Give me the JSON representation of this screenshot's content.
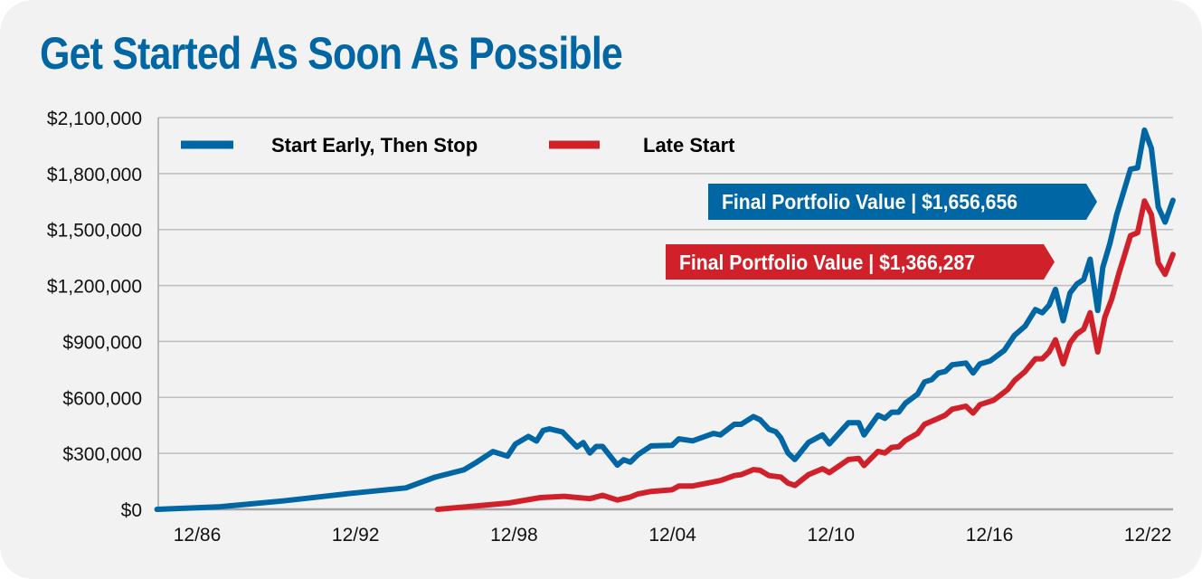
{
  "title": "Get Started As Soon As Possible",
  "colors": {
    "blue": "#0066a4",
    "red": "#d0212b",
    "grid": "#bdbdbd",
    "background": "#f2f2f2"
  },
  "callouts": [
    {
      "label": "Final Portfolio Value | $1,656,656",
      "series": "Start Early, Then Stop"
    },
    {
      "label": "Final Portfolio Value | $1,366,287",
      "series": "Late Start"
    }
  ],
  "chart_data": {
    "type": "line",
    "title": "Get Started As Soon As Possible",
    "xlabel": "",
    "ylabel": "",
    "xlim": [
      1985.5,
      2023.95
    ],
    "ylim": [
      0,
      2100000
    ],
    "grid": true,
    "legend_position": "top-left",
    "x_ticks": [
      {
        "label": "12/86",
        "x": 1987.0
      },
      {
        "label": "12/92",
        "x": 1993.0
      },
      {
        "label": "12/98",
        "x": 1999.0
      },
      {
        "label": "12/04",
        "x": 2005.0
      },
      {
        "label": "12/10",
        "x": 2011.0
      },
      {
        "label": "12/16",
        "x": 2017.0
      },
      {
        "label": "12/22",
        "x": 2023.0
      }
    ],
    "y_ticks": [
      {
        "label": "$0",
        "v": 0
      },
      {
        "label": "$300,000",
        "v": 300000
      },
      {
        "label": "$600,000",
        "v": 600000
      },
      {
        "label": "$900,000",
        "v": 900000
      },
      {
        "label": "$1,200,000",
        "v": 1200000
      },
      {
        "label": "$1,500,000",
        "v": 1500000
      },
      {
        "label": "$1,800,000",
        "v": 1800000
      },
      {
        "label": "$2,100,000",
        "v": 2100000
      }
    ],
    "series": [
      {
        "name": "Start Early, Then Stop",
        "color": "#0066a4",
        "points": [
          [
            1985.48,
            0
          ],
          [
            1987.8,
            13000
          ],
          [
            1990.25,
            45000
          ],
          [
            1992.7,
            84000
          ],
          [
            1994.9,
            115000
          ],
          [
            1996.0,
            172000
          ],
          [
            1997.1,
            212000
          ],
          [
            1997.59,
            253000
          ],
          [
            1998.2,
            310000
          ],
          [
            1998.75,
            285000
          ],
          [
            1999.05,
            350000
          ],
          [
            1999.54,
            391000
          ],
          [
            1999.85,
            366000
          ],
          [
            2000.1,
            423000
          ],
          [
            2000.34,
            431000
          ],
          [
            2000.83,
            415000
          ],
          [
            2001.38,
            334000
          ],
          [
            2001.62,
            358000
          ],
          [
            2001.87,
            302000
          ],
          [
            2002.11,
            337000
          ],
          [
            2002.35,
            337000
          ],
          [
            2002.91,
            237000
          ],
          [
            2003.15,
            266000
          ],
          [
            2003.4,
            253000
          ],
          [
            2003.7,
            294000
          ],
          [
            2004.19,
            340000
          ],
          [
            2004.98,
            343000
          ],
          [
            2005.24,
            378000
          ],
          [
            2005.76,
            367000
          ],
          [
            2006.55,
            407000
          ],
          [
            2006.81,
            399000
          ],
          [
            2007.34,
            456000
          ],
          [
            2007.6,
            456000
          ],
          [
            2008.06,
            497000
          ],
          [
            2008.32,
            480000
          ],
          [
            2008.65,
            429000
          ],
          [
            2008.91,
            416000
          ],
          [
            2009.1,
            383000
          ],
          [
            2009.37,
            302000
          ],
          [
            2009.63,
            267000
          ],
          [
            2010.15,
            359000
          ],
          [
            2010.68,
            399000
          ],
          [
            2010.94,
            351000
          ],
          [
            2011.66,
            464000
          ],
          [
            2012.05,
            464000
          ],
          [
            2012.25,
            399000
          ],
          [
            2012.78,
            505000
          ],
          [
            2013.04,
            488000
          ],
          [
            2013.3,
            521000
          ],
          [
            2013.56,
            521000
          ],
          [
            2013.82,
            569000
          ],
          [
            2014.28,
            618000
          ],
          [
            2014.54,
            683000
          ],
          [
            2014.81,
            695000
          ],
          [
            2015.07,
            731000
          ],
          [
            2015.33,
            739000
          ],
          [
            2015.59,
            775000
          ],
          [
            2016.11,
            784000
          ],
          [
            2016.38,
            731000
          ],
          [
            2016.64,
            780000
          ],
          [
            2017.03,
            796000
          ],
          [
            2017.56,
            852000
          ],
          [
            2017.95,
            933000
          ],
          [
            2018.35,
            982000
          ],
          [
            2018.74,
            1071000
          ],
          [
            2019.0,
            1054000
          ],
          [
            2019.26,
            1095000
          ],
          [
            2019.5,
            1179000
          ],
          [
            2019.79,
            1011000
          ],
          [
            2020.05,
            1160000
          ],
          [
            2020.31,
            1208000
          ],
          [
            2020.57,
            1232000
          ],
          [
            2020.81,
            1341000
          ],
          [
            2021.1,
            1066000
          ],
          [
            2021.29,
            1297000
          ],
          [
            2021.56,
            1426000
          ],
          [
            2021.82,
            1580000
          ],
          [
            2022.08,
            1701000
          ],
          [
            2022.34,
            1823000
          ],
          [
            2022.61,
            1831000
          ],
          [
            2022.87,
            2033000
          ],
          [
            2023.13,
            1936000
          ],
          [
            2023.39,
            1621000
          ],
          [
            2023.65,
            1540000
          ],
          [
            2023.95,
            1656656
          ]
        ]
      },
      {
        "name": "Late Start",
        "color": "#d0212b",
        "points": [
          [
            1996.1,
            0
          ],
          [
            1998.8,
            34000
          ],
          [
            2000.0,
            63000
          ],
          [
            2000.9,
            70000
          ],
          [
            2001.87,
            57000
          ],
          [
            2002.35,
            75000
          ],
          [
            2002.91,
            50000
          ],
          [
            2003.4,
            66000
          ],
          [
            2003.7,
            83000
          ],
          [
            2004.19,
            96000
          ],
          [
            2004.98,
            105000
          ],
          [
            2005.24,
            125000
          ],
          [
            2005.76,
            125000
          ],
          [
            2006.81,
            154000
          ],
          [
            2007.34,
            181000
          ],
          [
            2007.6,
            186000
          ],
          [
            2008.06,
            213000
          ],
          [
            2008.32,
            209000
          ],
          [
            2008.65,
            181000
          ],
          [
            2009.1,
            173000
          ],
          [
            2009.37,
            141000
          ],
          [
            2009.63,
            128000
          ],
          [
            2010.15,
            186000
          ],
          [
            2010.68,
            218000
          ],
          [
            2010.94,
            197000
          ],
          [
            2011.66,
            267000
          ],
          [
            2012.05,
            273000
          ],
          [
            2012.25,
            235000
          ],
          [
            2012.78,
            311000
          ],
          [
            2013.04,
            302000
          ],
          [
            2013.3,
            332000
          ],
          [
            2013.56,
            335000
          ],
          [
            2013.82,
            370000
          ],
          [
            2014.28,
            407000
          ],
          [
            2014.54,
            456000
          ],
          [
            2015.07,
            488000
          ],
          [
            2015.33,
            505000
          ],
          [
            2015.59,
            537000
          ],
          [
            2016.11,
            553000
          ],
          [
            2016.38,
            516000
          ],
          [
            2016.64,
            561000
          ],
          [
            2017.16,
            585000
          ],
          [
            2017.69,
            642000
          ],
          [
            2017.95,
            690000
          ],
          [
            2018.35,
            739000
          ],
          [
            2018.74,
            807000
          ],
          [
            2019.0,
            807000
          ],
          [
            2019.26,
            844000
          ],
          [
            2019.5,
            909000
          ],
          [
            2019.79,
            780000
          ],
          [
            2020.05,
            893000
          ],
          [
            2020.31,
            941000
          ],
          [
            2020.57,
            966000
          ],
          [
            2020.81,
            1054000
          ],
          [
            2021.1,
            844000
          ],
          [
            2021.37,
            1030000
          ],
          [
            2021.63,
            1127000
          ],
          [
            2021.9,
            1265000
          ],
          [
            2022.08,
            1346000
          ],
          [
            2022.34,
            1467000
          ],
          [
            2022.61,
            1483000
          ],
          [
            2022.87,
            1653000
          ],
          [
            2023.13,
            1580000
          ],
          [
            2023.39,
            1321000
          ],
          [
            2023.65,
            1260000
          ],
          [
            2023.95,
            1366287
          ]
        ]
      }
    ]
  }
}
